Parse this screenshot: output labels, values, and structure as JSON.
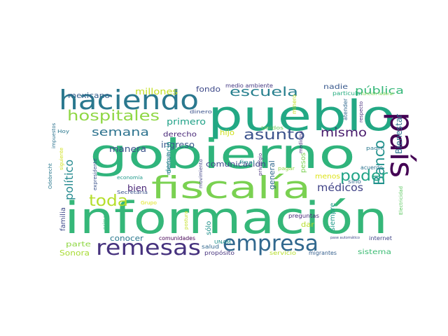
{
  "wordcloud": {
    "words": [
      {
        "text": "información",
        "color": "#35b779"
      },
      {
        "text": "gobierno",
        "color": "#2fb47c"
      },
      {
        "text": "pueblo",
        "color": "#22a884"
      },
      {
        "text": "haciendo",
        "color": "#2a788e"
      },
      {
        "text": "fiscalía",
        "color": "#7ad151"
      },
      {
        "text": "país",
        "color": "#440154"
      },
      {
        "text": "remesas",
        "color": "#46327e"
      },
      {
        "text": "empresa",
        "color": "#31688e"
      },
      {
        "text": "hospitales",
        "color": "#8fd744"
      },
      {
        "text": "escuela",
        "color": "#277f8e"
      },
      {
        "text": "Banco",
        "color": "#21918c"
      },
      {
        "text": "toda",
        "color": "#b5de2b"
      },
      {
        "text": "semana",
        "color": "#2c728e"
      },
      {
        "text": "asunto",
        "color": "#3b528b"
      },
      {
        "text": "mismo",
        "color": "#481a6c"
      },
      {
        "text": "poder",
        "color": "#20a486"
      },
      {
        "text": "pública",
        "color": "#35b779"
      },
      {
        "text": "político",
        "color": "#23898e"
      },
      {
        "text": "médicos",
        "color": "#414487"
      },
      {
        "text": "Bienestar",
        "color": "#2c728e"
      },
      {
        "text": "mexicano",
        "color": "#355f8d"
      },
      {
        "text": "millones",
        "color": "#c2df23"
      },
      {
        "text": "fondo",
        "color": "#3e4989"
      },
      {
        "text": "primero",
        "color": "#1fa187"
      },
      {
        "text": "manera",
        "color": "#3b528b"
      },
      {
        "text": "derecho",
        "color": "#482878"
      },
      {
        "text": "ingreso",
        "color": "#38588c"
      },
      {
        "text": "bien",
        "color": "#482475"
      },
      {
        "text": "denuncia",
        "color": "#21918c"
      },
      {
        "text": "hijo",
        "color": "#d0e11c"
      },
      {
        "text": "comunicación",
        "color": "#3e4989"
      },
      {
        "text": "general",
        "color": "#31688e"
      },
      {
        "text": "familia",
        "color": "#3e4989"
      },
      {
        "text": "conocer",
        "color": "#2a788e"
      },
      {
        "text": "parte",
        "color": "#8fd744"
      },
      {
        "text": "Sonora",
        "color": "#a8db34"
      },
      {
        "text": "dar",
        "color": "#b5de2b"
      },
      {
        "text": "menos",
        "color": "#dde318"
      },
      {
        "text": "siempre",
        "color": "#1f9a8a"
      },
      {
        "text": "sistema",
        "color": "#3dbc74"
      },
      {
        "text": "sólo",
        "color": "#21918c"
      },
      {
        "text": "pesos",
        "color": "#7ad151"
      },
      {
        "text": "medio ambiente",
        "color": "#443983"
      },
      {
        "text": "nadie",
        "color": "#38588c"
      },
      {
        "text": "particular",
        "color": "#27ad81"
      },
      {
        "text": "función federal",
        "color": "#7ad151"
      },
      {
        "text": "respecto",
        "color": "#472d7b"
      },
      {
        "text": "atender",
        "color": "#31688e"
      },
      {
        "text": "dinero",
        "color": "#3b528b"
      },
      {
        "text": "Unidos",
        "color": "#6ece58"
      },
      {
        "text": "minero",
        "color": "#c2df23"
      },
      {
        "text": "impuestos",
        "color": "#2c728e"
      },
      {
        "text": "Hoy",
        "color": "#2a788e"
      },
      {
        "text": "Odebrecht",
        "color": "#2a788e"
      },
      {
        "text": "siguiente",
        "color": "#d0e11c"
      },
      {
        "text": "expresidente",
        "color": "#3b528b"
      },
      {
        "text": "economía",
        "color": "#1f9a8a"
      },
      {
        "text": "matrícula",
        "color": "#2c728e"
      },
      {
        "text": "movimiento",
        "color": "#414487"
      },
      {
        "text": "final",
        "color": "#23898e"
      },
      {
        "text": "privilegio",
        "color": "#472d7b"
      },
      {
        "text": "pagar",
        "color": "#8fd744"
      },
      {
        "text": "medicina",
        "color": "#46327e"
      },
      {
        "text": "sino",
        "color": "#31688e"
      },
      {
        "text": "padre",
        "color": "#2a788e"
      },
      {
        "text": "acuerdo",
        "color": "#2c728e"
      },
      {
        "text": "Electricidad",
        "color": "#5ec962"
      },
      {
        "text": "Secretaría",
        "color": "#3b528b"
      },
      {
        "text": "Grupo",
        "color": "#dde318"
      },
      {
        "text": "preguntas",
        "color": "#482878"
      },
      {
        "text": "pase automático",
        "color": "#3e4989"
      },
      {
        "text": "internet",
        "color": "#414487"
      },
      {
        "text": "primera",
        "color": "#35b779"
      },
      {
        "text": "postura",
        "color": "#c2df23"
      },
      {
        "text": "comunidades",
        "color": "#440154"
      },
      {
        "text": "UNAM",
        "color": "#21918c"
      },
      {
        "text": "salud",
        "color": "#31688e"
      },
      {
        "text": "propósito",
        "color": "#46327e"
      },
      {
        "text": "servicio",
        "color": "#b5de2b"
      },
      {
        "text": "migrantes",
        "color": "#355f8d"
      }
    ]
  }
}
